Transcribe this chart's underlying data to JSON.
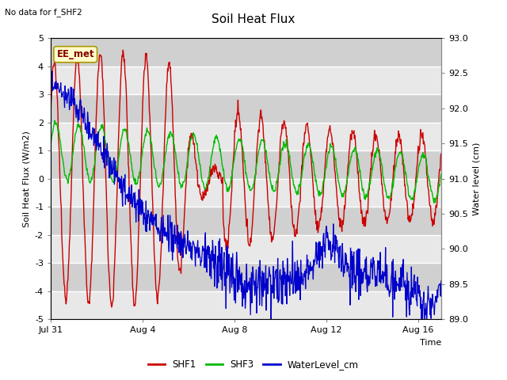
{
  "title": "Soil Heat Flux",
  "subtitle": "No data for f_SHF2",
  "ylabel_left": "Soil Heat Flux (W/m2)",
  "ylabel_right": "Water level (cm)",
  "xlabel": "Time",
  "ylim_left": [
    -5.0,
    5.0
  ],
  "ylim_right": [
    89.0,
    93.0
  ],
  "yticks_left": [
    -5.0,
    -4.0,
    -3.0,
    -2.0,
    -1.0,
    0.0,
    1.0,
    2.0,
    3.0,
    4.0,
    5.0
  ],
  "yticks_right": [
    89.0,
    89.5,
    90.0,
    90.5,
    91.0,
    91.5,
    92.0,
    92.5,
    93.0
  ],
  "xtick_labels": [
    "Jul 31",
    "Aug 4",
    "Aug 8",
    "Aug 12",
    "Aug 16"
  ],
  "legend_entries": [
    "SHF1",
    "SHF3",
    "WaterLevel_cm"
  ],
  "legend_colors": [
    "red",
    "green",
    "blue"
  ],
  "site_label": "EE_met",
  "site_label_bg": "#ffffcc",
  "site_label_border": "#aa9900",
  "plot_bg_light": "#e8e8e8",
  "plot_bg_dark": "#d0d0d0",
  "shf1_color": "#cc0000",
  "shf3_color": "#00bb00",
  "water_color": "#0000cc",
  "n_days": 18,
  "half_period_days": 1.0
}
